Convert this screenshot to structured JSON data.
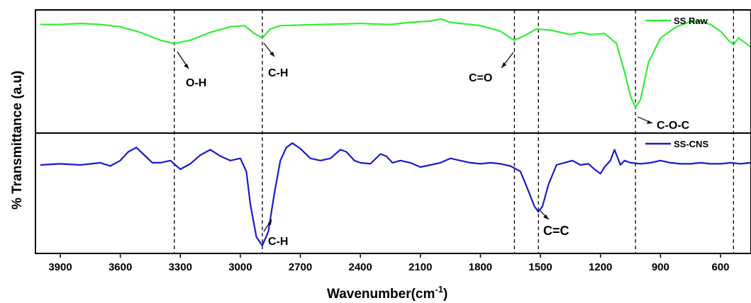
{
  "chart_data": {
    "type": "line",
    "xlabel_main": "Wavenumber(cm",
    "xlabel_sup": "-1",
    "xlabel_close": ")",
    "ylabel": "% Transmittance (a.u)",
    "xlim": [
      4000,
      450
    ],
    "xticks": [
      3900,
      3600,
      3300,
      3000,
      2700,
      2400,
      2100,
      1800,
      1500,
      1200,
      900,
      600
    ],
    "xtick_labels": [
      "3900",
      "3600",
      "3300",
      "3000",
      "2700",
      "2400",
      "2100",
      "1800",
      "1500",
      "1200",
      "900",
      "600"
    ],
    "colors": {
      "raw": "#33ee33",
      "cns": "#1a1acc"
    },
    "ref_lines": [
      3330,
      2890,
      1630,
      1510,
      1025,
      535
    ],
    "series": [
      {
        "name": "SS Raw",
        "panel": "top",
        "color": "#33ee33",
        "x": [
          4000,
          3900,
          3800,
          3700,
          3600,
          3500,
          3400,
          3330,
          3250,
          3150,
          3050,
          2980,
          2930,
          2890,
          2850,
          2800,
          2600,
          2400,
          2250,
          2150,
          2050,
          2000,
          1950,
          1900,
          1800,
          1700,
          1650,
          1630,
          1580,
          1520,
          1450,
          1350,
          1300,
          1250,
          1180,
          1120,
          1080,
          1050,
          1025,
          1000,
          960,
          900,
          820,
          760,
          700,
          650,
          600,
          560,
          535,
          510,
          480,
          450
        ],
        "y": [
          92,
          92,
          93,
          92,
          90,
          85,
          78,
          75,
          78,
          85,
          90,
          91,
          84,
          80,
          88,
          91,
          92,
          93,
          92,
          94,
          95,
          97,
          94,
          93,
          91,
          86,
          80,
          78,
          82,
          88,
          87,
          83,
          85,
          83,
          84,
          75,
          50,
          28,
          18,
          25,
          58,
          80,
          90,
          94,
          95,
          92,
          86,
          78,
          74,
          80,
          76,
          72
        ]
      },
      {
        "name": "SS-CNS",
        "panel": "bottom",
        "color": "#1a1acc",
        "x": [
          4000,
          3900,
          3800,
          3700,
          3650,
          3600,
          3560,
          3520,
          3480,
          3440,
          3400,
          3350,
          3300,
          3250,
          3200,
          3150,
          3100,
          3050,
          3000,
          2970,
          2950,
          2920,
          2890,
          2860,
          2830,
          2800,
          2770,
          2740,
          2700,
          2650,
          2600,
          2550,
          2500,
          2470,
          2430,
          2400,
          2350,
          2300,
          2270,
          2240,
          2200,
          2150,
          2100,
          2050,
          2000,
          1950,
          1900,
          1850,
          1800,
          1750,
          1700,
          1650,
          1600,
          1560,
          1530,
          1510,
          1490,
          1460,
          1420,
          1380,
          1340,
          1300,
          1260,
          1230,
          1200,
          1180,
          1150,
          1130,
          1100,
          1080,
          1050,
          1000,
          950,
          900,
          850,
          800,
          750,
          700,
          650,
          600,
          550,
          500,
          450
        ],
        "y": [
          76,
          77,
          76,
          78,
          75,
          80,
          88,
          92,
          85,
          78,
          78,
          80,
          72,
          77,
          85,
          90,
          84,
          80,
          82,
          70,
          40,
          10,
          2,
          15,
          50,
          80,
          92,
          96,
          91,
          82,
          80,
          82,
          90,
          88,
          80,
          78,
          77,
          86,
          84,
          78,
          80,
          78,
          74,
          76,
          78,
          82,
          80,
          78,
          77,
          78,
          77,
          75,
          70,
          52,
          38,
          33,
          38,
          58,
          76,
          78,
          80,
          76,
          77,
          72,
          68,
          74,
          80,
          90,
          76,
          80,
          78,
          77,
          78,
          80,
          78,
          77,
          77,
          78,
          77,
          77,
          78,
          77,
          78
        ]
      }
    ],
    "legend": [
      "SS Raw",
      "SS-CNS"
    ],
    "legend_position": "top-right of each panel",
    "annotations": [
      {
        "text": "O-H",
        "panel": "top"
      },
      {
        "text": "C-H",
        "panel": "top"
      },
      {
        "text": "C=O",
        "panel": "top"
      },
      {
        "text": "C-O-C",
        "panel": "top"
      },
      {
        "text": "C-H",
        "panel": "bottom"
      },
      {
        "text": "C=C",
        "panel": "bottom"
      }
    ]
  }
}
